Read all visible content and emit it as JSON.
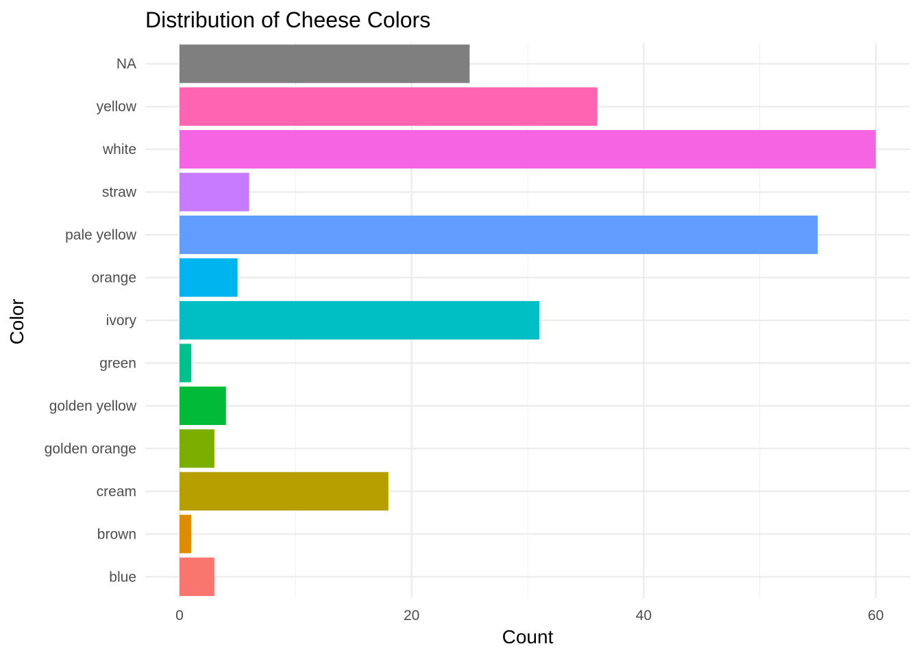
{
  "chart_data": {
    "type": "bar",
    "orientation": "horizontal",
    "title": "Distribution of Cheese Colors",
    "xlabel": "Count",
    "ylabel": "Color",
    "xlim": [
      0,
      60
    ],
    "x_ticks": [
      0,
      20,
      40,
      60
    ],
    "grid": true,
    "legend": "none",
    "categories": [
      "blue",
      "brown",
      "cream",
      "golden orange",
      "golden yellow",
      "green",
      "ivory",
      "orange",
      "pale yellow",
      "straw",
      "white",
      "yellow",
      "NA"
    ],
    "values": [
      3,
      1,
      18,
      3,
      4,
      1,
      31,
      5,
      55,
      6,
      60,
      36,
      25
    ],
    "colors": [
      "#F8766D",
      "#DE8C00",
      "#B79F00",
      "#7CAE00",
      "#00BA38",
      "#00C08B",
      "#00BFC4",
      "#00B4F0",
      "#619CFF",
      "#C77CFF",
      "#F564E3",
      "#FF64B0",
      "#7F7F7F"
    ]
  }
}
